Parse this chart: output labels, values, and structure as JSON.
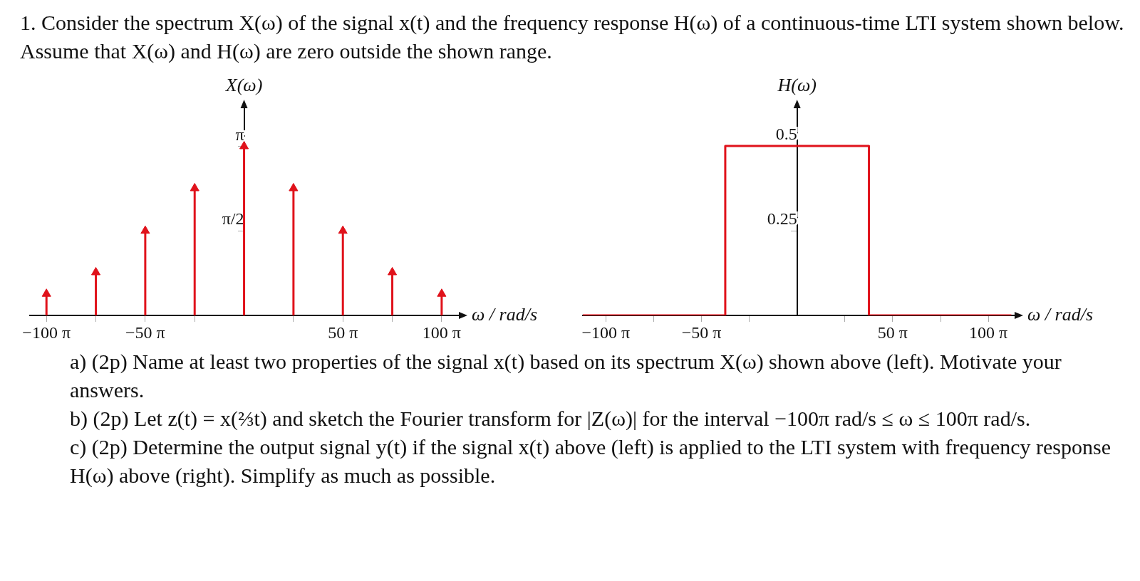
{
  "chart_data": [
    {
      "type": "lollipop",
      "title": "1. Consider the spectrum X(ω) of the signal x(t) and the frequency response H(ω) of a continuous-time LTI system shown below. Assume that X(ω) and H(ω) are zero outside the shown range.",
      "ylabel": "X(ω)",
      "xlabel": "ω / rad/s",
      "marker": "triangle",
      "grid": false,
      "annotations": [
        "a) (2p) Name at least two properties of the signal x(t) based on its spectrum X(ω) shown above (left). Motivate your answers.",
        "b) (2p) Let z(t) = x(⅔t) and sketch the Fourier transform for |Z(ω)| for the interval −100π rad/s ≤ ω ≤ 100π rad/s.",
        "c) (2p) Determine the output signal y(t) if the signal x(t) above (left) is applied to the LTI system with frequency response H(ω) above (right). Simplify as much as possible."
      ],
      "x": [
        -314.16,
        -235.62,
        -157.08,
        -78.54,
        0,
        78.54,
        157.08,
        235.62,
        314.16
      ],
      "series": [
        {
          "color": "#e0121b",
          "values": [
            0.4,
            0.8,
            1.57,
            2.36,
            3.14,
            2.36,
            1.57,
            0.8,
            0.4
          ]
        }
      ],
      "xlim": [
        -340,
        346
      ],
      "ylim": [
        0,
        3.9
      ],
      "xticks": [
        {
          "value": -314.16,
          "label": "−100 π"
        },
        {
          "value": -235.62,
          "label": null
        },
        {
          "value": -157.08,
          "label": "−50 π"
        },
        {
          "value": -78.54,
          "label": null
        },
        {
          "value": 78.54,
          "label": null
        },
        {
          "value": 157.08,
          "label": "50 π"
        },
        {
          "value": 235.62,
          "label": null
        },
        {
          "value": 314.16,
          "label": "100 π"
        }
      ],
      "yticks": [
        {
          "value": 1.5708,
          "label": "π/2"
        },
        {
          "value": 3.1416,
          "label": "π"
        }
      ]
    },
    {
      "type": "line",
      "ylabel": "H(ω)",
      "xlabel": "ω / rad/s",
      "marker": "none",
      "grid": false,
      "x": [
        -352,
        -118,
        -118,
        118,
        118,
        352
      ],
      "series": [
        {
          "color": "#e0121b",
          "values": [
            0,
            0,
            0.5,
            0.5,
            0,
            0
          ]
        }
      ],
      "xlim": [
        -352,
        362
      ],
      "ylim": [
        0,
        0.62
      ],
      "xticks": [
        {
          "value": -314.16,
          "label": "−100 π"
        },
        {
          "value": -235.62,
          "label": null
        },
        {
          "value": -157.08,
          "label": "−50 π"
        },
        {
          "value": -78.54,
          "label": null
        },
        {
          "value": 78.54,
          "label": null
        },
        {
          "value": 157.08,
          "label": "50 π"
        },
        {
          "value": 235.62,
          "label": null
        },
        {
          "value": 314.16,
          "label": "100 π"
        }
      ],
      "yticks": [
        0.25,
        0.5
      ]
    }
  ]
}
